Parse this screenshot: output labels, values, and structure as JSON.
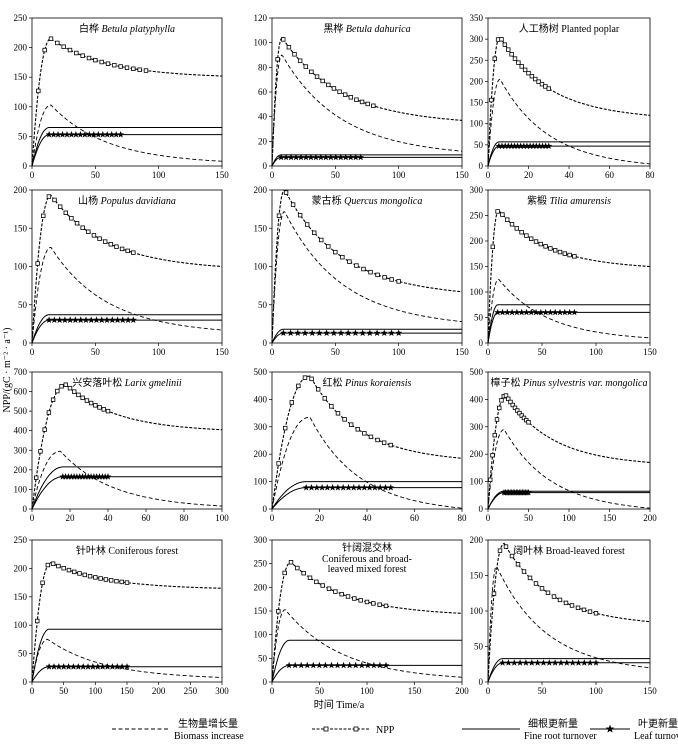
{
  "figure": {
    "y_label": "NPP/(gC · m⁻² · a⁻¹)",
    "x_label": "时间 Time/a"
  },
  "legend": [
    {
      "key": "biomass",
      "cn": "生物量增长量",
      "en": "Biomass increase"
    },
    {
      "key": "npp",
      "cn": "NPP",
      "en": ""
    },
    {
      "key": "fineroot",
      "cn": "细根更新量",
      "en": "Fine root turnover"
    },
    {
      "key": "leaf",
      "cn": "叶更新量",
      "en": "Leaf turnover"
    }
  ],
  "chart_data": [
    {
      "type": "line",
      "title_cn": "白桦",
      "title_en": "Betula platyphylla",
      "xlim": [
        0,
        150
      ],
      "xticks": [
        0,
        50,
        100,
        150
      ],
      "ylim": [
        0,
        250
      ],
      "yticks": [
        0,
        50,
        100,
        150,
        200,
        250
      ],
      "npp": {
        "peak": [
          15,
          215
        ],
        "end": [
          150,
          152
        ],
        "marker_end": 90
      },
      "biomass": {
        "peak": [
          15,
          103
        ],
        "end": [
          150,
          8
        ]
      },
      "fineroot": 65,
      "leaf": 53,
      "leaf_end": 70
    },
    {
      "type": "line",
      "title_cn": "黑桦",
      "title_en": "Betula dahurica",
      "xlim": [
        0,
        150
      ],
      "xticks": [
        0,
        50,
        100,
        150
      ],
      "ylim": [
        0,
        120
      ],
      "yticks": [
        0,
        20,
        40,
        60,
        80,
        100,
        120
      ],
      "npp": {
        "peak": [
          8,
          104
        ],
        "end": [
          150,
          37
        ],
        "marker_end": 80
      },
      "biomass": {
        "peak": [
          8,
          90
        ],
        "end": [
          150,
          12
        ]
      },
      "fineroot": 9,
      "leaf": 7,
      "leaf_end": 70
    },
    {
      "type": "line",
      "title_cn": "人工杨树",
      "title_en": "Planted poplar",
      "xlim": [
        0,
        80
      ],
      "xticks": [
        0,
        20,
        40,
        60,
        80
      ],
      "ylim": [
        0,
        350
      ],
      "yticks": [
        0,
        50,
        100,
        150,
        200,
        250,
        300,
        350
      ],
      "npp": {
        "peak": [
          6,
          305
        ],
        "end": [
          80,
          120
        ],
        "marker_end": 30
      },
      "biomass": {
        "peak": [
          6,
          205
        ],
        "end": [
          80,
          5
        ]
      },
      "fineroot": 57,
      "leaf": 47,
      "leaf_end": 30
    },
    {
      "type": "line",
      "title_cn": "山杨",
      "title_en": "Populus davidiana",
      "xlim": [
        0,
        150
      ],
      "xticks": [
        0,
        50,
        100,
        150
      ],
      "ylim": [
        0,
        200
      ],
      "yticks": [
        0,
        50,
        100,
        150,
        200
      ],
      "npp": {
        "peak": [
          15,
          193
        ],
        "end": [
          150,
          100
        ],
        "marker_end": 80
      },
      "biomass": {
        "peak": [
          15,
          125
        ],
        "end": [
          150,
          17
        ]
      },
      "fineroot": 37,
      "leaf": 30,
      "leaf_end": 80
    },
    {
      "type": "line",
      "title_cn": "蒙古栎",
      "title_en": "Quercus mongolica",
      "xlim": [
        0,
        150
      ],
      "xticks": [
        0,
        50,
        100,
        150
      ],
      "ylim": [
        0,
        200
      ],
      "yticks": [
        0,
        50,
        100,
        150,
        200
      ],
      "npp": {
        "peak": [
          10,
          200
        ],
        "end": [
          150,
          67
        ],
        "marker_end": 100
      },
      "biomass": {
        "peak": [
          10,
          172
        ],
        "end": [
          150,
          28
        ]
      },
      "fineroot": 18,
      "leaf": 13,
      "leaf_end": 100
    },
    {
      "type": "line",
      "title_cn": "紫椴",
      "title_en": "Tilia amurensis",
      "xlim": [
        0,
        150
      ],
      "xticks": [
        0,
        50,
        100,
        150
      ],
      "ylim": [
        0,
        300
      ],
      "yticks": [
        0,
        50,
        100,
        150,
        200,
        250,
        300
      ],
      "npp": {
        "peak": [
          10,
          260
        ],
        "end": [
          150,
          150
        ],
        "marker_end": 80
      },
      "biomass": {
        "peak": [
          10,
          125
        ],
        "end": [
          150,
          10
        ]
      },
      "fineroot": 75,
      "leaf": 60,
      "leaf_end": 80
    },
    {
      "type": "line",
      "title_cn": "兴安落叶松",
      "title_en": "Larix gmelinii",
      "xlim": [
        0,
        100
      ],
      "xticks": [
        0,
        20,
        40,
        60,
        80,
        100
      ],
      "ylim": [
        0,
        700
      ],
      "yticks": [
        0,
        100,
        200,
        300,
        400,
        500,
        600,
        700
      ],
      "npp": {
        "peak": [
          18,
          635
        ],
        "end": [
          100,
          405
        ],
        "marker_end": 40
      },
      "biomass": {
        "peak": [
          15,
          295
        ],
        "end": [
          100,
          15
        ]
      },
      "fineroot": 215,
      "leaf": 165,
      "leaf_end": 40
    },
    {
      "type": "line",
      "title_cn": "红松",
      "title_en": "Pinus koraiensis",
      "xlim": [
        0,
        80
      ],
      "xticks": [
        0,
        20,
        40,
        60,
        80
      ],
      "ylim": [
        0,
        500
      ],
      "yticks": [
        0,
        100,
        200,
        300,
        400,
        500
      ],
      "npp": {
        "peak": [
          16,
          485
        ],
        "end": [
          80,
          185
        ],
        "marker_end": 50
      },
      "biomass": {
        "peak": [
          16,
          335
        ],
        "end": [
          80,
          3
        ]
      },
      "fineroot": 100,
      "leaf": 78,
      "leaf_end": 50
    },
    {
      "type": "line",
      "title_cn": "樟子松",
      "title_en": "Pinus sylvestris var. mongolica",
      "xlim": [
        0,
        200
      ],
      "xticks": [
        0,
        50,
        100,
        150,
        200
      ],
      "ylim": [
        0,
        500
      ],
      "yticks": [
        0,
        100,
        200,
        300,
        400,
        500
      ],
      "npp": {
        "peak": [
          22,
          415
        ],
        "end": [
          200,
          170
        ],
        "marker_end": 50
      },
      "biomass": {
        "peak": [
          20,
          290
        ],
        "end": [
          200,
          3
        ]
      },
      "fineroot": 65,
      "leaf": 60,
      "leaf_end": 50
    },
    {
      "type": "line",
      "title_cn": "针叶林",
      "title_en": "Coniferous forest",
      "xlim": [
        0,
        300
      ],
      "xticks": [
        0,
        50,
        100,
        150,
        200,
        250,
        300
      ],
      "ylim": [
        0,
        250
      ],
      "yticks": [
        0,
        50,
        100,
        150,
        200,
        250
      ],
      "npp": {
        "peak": [
          30,
          210
        ],
        "end": [
          300,
          165
        ],
        "marker_end": 150
      },
      "biomass": {
        "peak": [
          25,
          75
        ],
        "end": [
          300,
          8
        ]
      },
      "fineroot": 93,
      "leaf": 27,
      "leaf_end": 150
    },
    {
      "type": "line",
      "title_cn": "针阔混交林",
      "title_en": "Coniferous and broad-leaved mixed forest",
      "title_en_lines": [
        "Coniferous and broad-",
        "leaved mixed forest"
      ],
      "xlim": [
        0,
        200
      ],
      "xticks": [
        0,
        50,
        100,
        150,
        200
      ],
      "ylim": [
        0,
        300
      ],
      "yticks": [
        0,
        50,
        100,
        150,
        200,
        250,
        300
      ],
      "npp": {
        "peak": [
          20,
          253
        ],
        "end": [
          200,
          145
        ],
        "marker_end": 120
      },
      "biomass": {
        "peak": [
          14,
          153
        ],
        "end": [
          200,
          10
        ]
      },
      "fineroot": 88,
      "leaf": 35,
      "leaf_end": 120
    },
    {
      "type": "line",
      "title_cn": "阔叶林",
      "title_en": "Broad-leaved forest",
      "xlim": [
        0,
        150
      ],
      "xticks": [
        0,
        50,
        100,
        150
      ],
      "ylim": [
        0,
        200
      ],
      "yticks": [
        0,
        50,
        100,
        150,
        200
      ],
      "npp": {
        "peak": [
          15,
          195
        ],
        "end": [
          150,
          85
        ],
        "marker_end": 100
      },
      "biomass": {
        "peak": [
          8,
          163
        ],
        "end": [
          150,
          20
        ]
      },
      "fineroot": 33,
      "leaf": 27,
      "leaf_end": 100
    }
  ]
}
